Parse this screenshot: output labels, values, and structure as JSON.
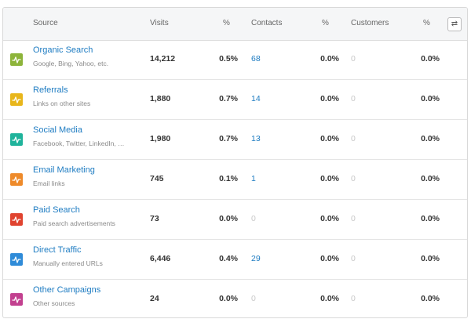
{
  "header": {
    "source": "Source",
    "visits": "Visits",
    "visits_pct": "%",
    "contacts": "Contacts",
    "contacts_pct": "%",
    "customers": "Customers",
    "customers_pct": "%",
    "toggle_glyph": "⇄"
  },
  "rows": [
    {
      "title": "Organic Search",
      "sub": "Google, Bing, Yahoo, etc.",
      "visits": "14,212",
      "visits_pct": "0.5%",
      "contacts": "68",
      "contacts_pct": "0.0%",
      "customers": "0",
      "customers_pct": "0.0%",
      "color": "#8db43a"
    },
    {
      "title": "Referrals",
      "sub": "Links on other sites",
      "visits": "1,880",
      "visits_pct": "0.7%",
      "contacts": "14",
      "contacts_pct": "0.0%",
      "customers": "0",
      "customers_pct": "0.0%",
      "color": "#e8b61b"
    },
    {
      "title": "Social Media",
      "sub": "Facebook, Twitter, LinkedIn, …",
      "visits": "1,980",
      "visits_pct": "0.7%",
      "contacts": "13",
      "contacts_pct": "0.0%",
      "customers": "0",
      "customers_pct": "0.0%",
      "color": "#1fb39b"
    },
    {
      "title": "Email Marketing",
      "sub": "Email links",
      "visits": "745",
      "visits_pct": "0.1%",
      "contacts": "1",
      "contacts_pct": "0.0%",
      "customers": "0",
      "customers_pct": "0.0%",
      "color": "#ee8a2a"
    },
    {
      "title": "Paid Search",
      "sub": "Paid search advertisements",
      "visits": "73",
      "visits_pct": "0.0%",
      "contacts": "0",
      "contacts_pct": "0.0%",
      "customers": "0",
      "customers_pct": "0.0%",
      "color": "#e0432f"
    },
    {
      "title": "Direct Traffic",
      "sub": "Manually entered URLs",
      "visits": "6,446",
      "visits_pct": "0.4%",
      "contacts": "29",
      "contacts_pct": "0.0%",
      "customers": "0",
      "customers_pct": "0.0%",
      "color": "#2f8bd8"
    },
    {
      "title": "Other Campaigns",
      "sub": "Other sources",
      "visits": "24",
      "visits_pct": "0.0%",
      "contacts": "0",
      "contacts_pct": "0.0%",
      "customers": "0",
      "customers_pct": "0.0%",
      "color": "#c2408f"
    }
  ]
}
